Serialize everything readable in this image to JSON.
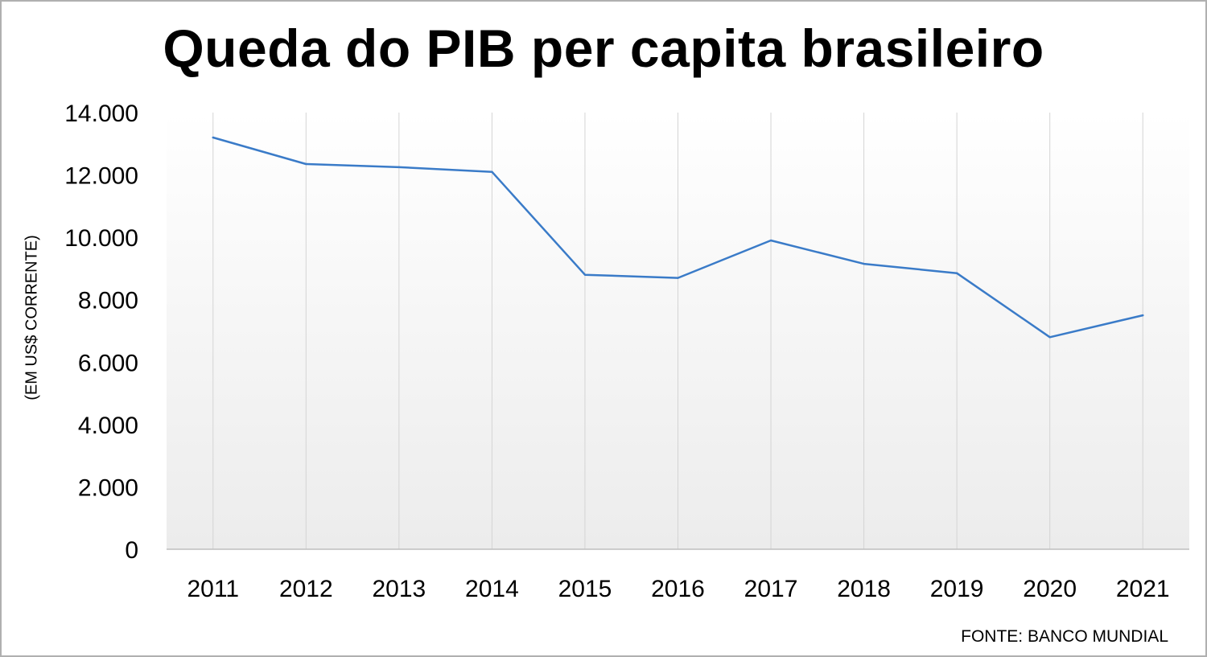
{
  "chart_data": {
    "type": "line",
    "title": "Queda do PIB per capita brasileiro",
    "ylabel": "(EM US$ CORRENTE)",
    "source": "FONTE: BANCO MUNDIAL",
    "categories": [
      "2011",
      "2012",
      "2013",
      "2014",
      "2015",
      "2016",
      "2017",
      "2018",
      "2019",
      "2020",
      "2021"
    ],
    "series": [
      {
        "values": [
          13200,
          12350,
          12250,
          12100,
          8800,
          8700,
          9900,
          9150,
          8850,
          6800,
          7500
        ],
        "color": "#3a7bc8"
      }
    ],
    "ylim": [
      0,
      14000
    ],
    "yticks": [
      0,
      2000,
      4000,
      6000,
      8000,
      10000,
      12000,
      14000
    ],
    "ytick_labels": [
      "0",
      "2.000",
      "4.000",
      "6.000",
      "8.000",
      "10.000",
      "12.000",
      "14.000"
    ],
    "grid": "vertical",
    "legend": "none"
  }
}
